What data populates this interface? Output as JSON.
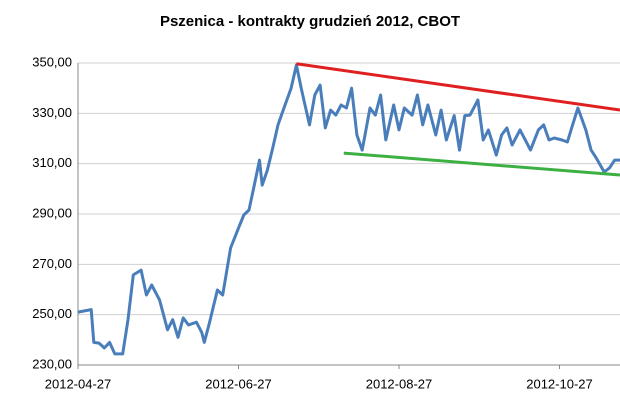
{
  "chart_data": {
    "type": "line",
    "title": "Pszenica - kontrakty grudzień 2012, CBOT",
    "x": [
      "2012-04-27",
      "2012-05-02",
      "2012-05-03",
      "2012-05-05",
      "2012-05-07",
      "2012-05-09",
      "2012-05-11",
      "2012-05-14",
      "2012-05-16",
      "2012-05-18",
      "2012-05-21",
      "2012-05-23",
      "2012-05-25",
      "2012-05-28",
      "2012-05-31",
      "2012-06-02",
      "2012-06-04",
      "2012-06-06",
      "2012-06-08",
      "2012-06-11",
      "2012-06-13",
      "2012-06-14",
      "2012-06-16",
      "2012-06-19",
      "2012-06-21",
      "2012-06-24",
      "2012-06-27",
      "2012-06-29",
      "2012-07-01",
      "2012-07-03",
      "2012-07-05",
      "2012-07-06",
      "2012-07-08",
      "2012-07-10",
      "2012-07-12",
      "2012-07-14",
      "2012-07-17",
      "2012-07-19",
      "2012-07-21",
      "2012-07-24",
      "2012-07-26",
      "2012-07-28",
      "2012-07-30",
      "2012-08-01",
      "2012-08-03",
      "2012-08-05",
      "2012-08-07",
      "2012-08-09",
      "2012-08-11",
      "2012-08-13",
      "2012-08-16",
      "2012-08-18",
      "2012-08-20",
      "2012-08-22",
      "2012-08-25",
      "2012-08-27",
      "2012-08-29",
      "2012-09-01",
      "2012-09-03",
      "2012-09-05",
      "2012-09-07",
      "2012-09-10",
      "2012-09-12",
      "2012-09-14",
      "2012-09-17",
      "2012-09-19",
      "2012-09-21",
      "2012-09-23",
      "2012-09-26",
      "2012-09-28",
      "2012-09-30",
      "2012-10-03",
      "2012-10-05",
      "2012-10-07",
      "2012-10-09",
      "2012-10-12",
      "2012-10-14",
      "2012-10-16",
      "2012-10-19",
      "2012-10-21",
      "2012-10-23",
      "2012-10-25",
      "2012-10-28",
      "2012-10-30",
      "2012-11-01",
      "2012-11-03",
      "2012-11-06",
      "2012-11-08",
      "2012-11-10",
      "2012-11-13",
      "2012-11-15",
      "2012-11-17",
      "2012-11-19"
    ],
    "series": [
      {
        "color": "#4a7ebb",
        "values": [
          251,
          252,
          239,
          238.7,
          236.8,
          239,
          234.4,
          234.4,
          248,
          265.8,
          267.7,
          257.8,
          261.8,
          255.8,
          244,
          248,
          241,
          248.7,
          245.9,
          247,
          243,
          239,
          247,
          259.8,
          257.8,
          276.5,
          284.4,
          289.6,
          291.6,
          301.5,
          311.4,
          301.5,
          307.5,
          316.2,
          325.4,
          331.3,
          340,
          349.2,
          339.3,
          325.4,
          337.3,
          341.2,
          324.2,
          331.3,
          329.3,
          333.3,
          332.1,
          340,
          321.4,
          315.4,
          332.1,
          329.3,
          337.3,
          319.4,
          333.3,
          323.4,
          332.1,
          329.3,
          337.3,
          325.4,
          333.3,
          321.4,
          331.3,
          319.4,
          329.1,
          315.4,
          329.1,
          329.3,
          335.3,
          319.4,
          323.4,
          313.4,
          321.4,
          324.2,
          317.4,
          323.4,
          319.4,
          315.4,
          323.4,
          325.4,
          319.4,
          320.2,
          319.4,
          318.6,
          325.4,
          332.1,
          323.4,
          315.4,
          312.2,
          306.7,
          308.3,
          311.4,
          311.4
        ]
      }
    ],
    "trendlines": [
      {
        "color": "#e02020",
        "x": [
          "2012-07-19",
          "2012-11-19"
        ],
        "values": [
          349.7,
          331.3
        ]
      },
      {
        "color": "#3cb043",
        "x": [
          "2012-08-06",
          "2012-11-19"
        ],
        "values": [
          314.2,
          305.5
        ]
      }
    ],
    "xlim": [
      "2012-04-27",
      "2012-11-19"
    ],
    "xticks": [
      "2012-04-27",
      "2012-06-27",
      "2012-08-27",
      "2012-10-27"
    ],
    "ylim": [
      230,
      350
    ],
    "yticks": [
      {
        "value": 230,
        "label": "230,00"
      },
      {
        "value": 250,
        "label": "250,00"
      },
      {
        "value": 270,
        "label": "270,00"
      },
      {
        "value": 290,
        "label": "290,00"
      },
      {
        "value": 310,
        "label": "310,00"
      },
      {
        "value": 330,
        "label": "330,00"
      },
      {
        "value": 350,
        "label": "350,00"
      }
    ],
    "grid": true
  }
}
